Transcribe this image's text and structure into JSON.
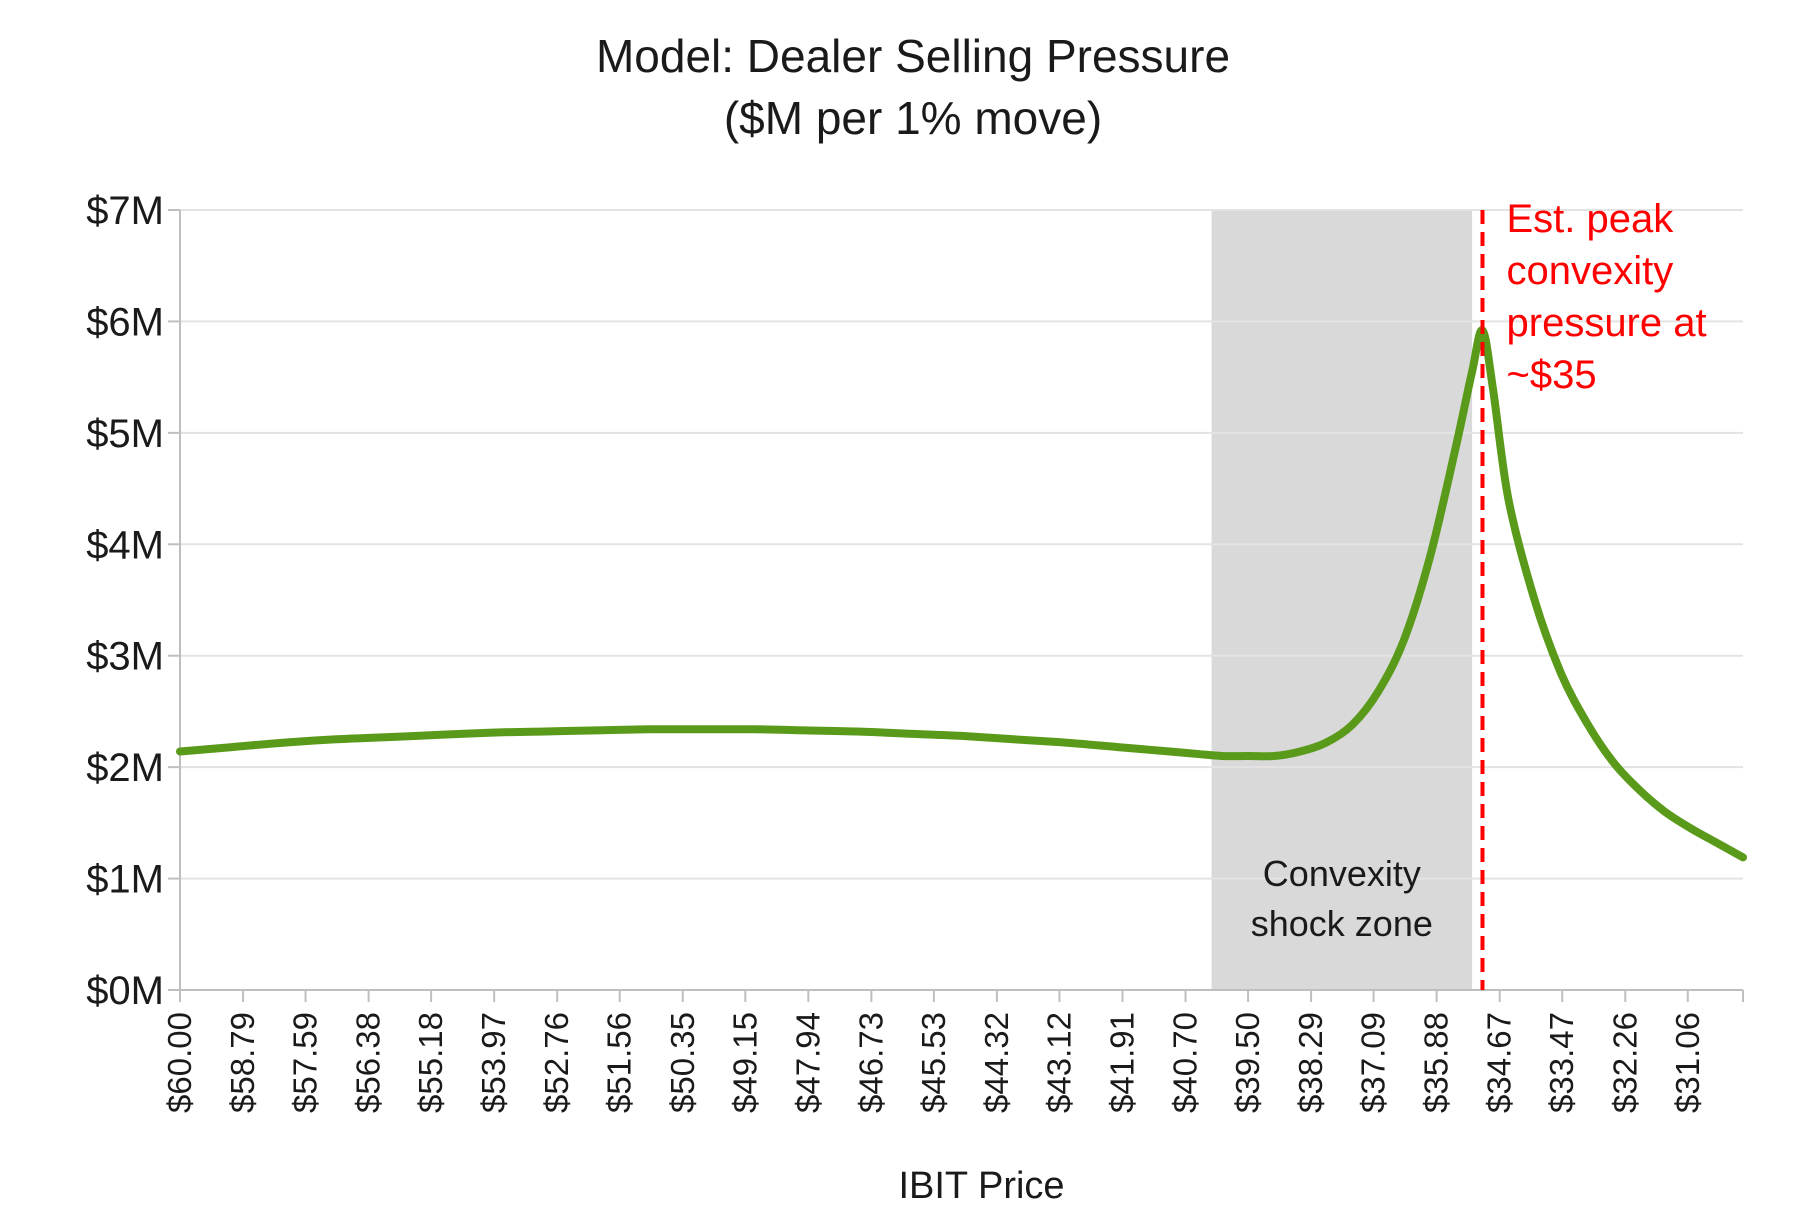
{
  "chart_data": {
    "type": "line",
    "title_lines": [
      "Model: Dealer Selling Pressure",
      "($M per 1% move)"
    ],
    "xlabel": "IBIT Price",
    "ylabel": "",
    "x_range": [
      60.0,
      30.0
    ],
    "ylim": [
      0,
      7
    ],
    "y_ticks": [
      0,
      1,
      2,
      3,
      4,
      5,
      6,
      7
    ],
    "y_tick_labels": [
      "$0M",
      "$1M",
      "$2M",
      "$3M",
      "$4M",
      "$5M",
      "$6M",
      "$7M"
    ],
    "x_ticks": [
      60.0,
      58.79,
      57.59,
      56.38,
      55.18,
      53.97,
      52.76,
      51.56,
      50.35,
      49.15,
      47.94,
      46.73,
      45.53,
      44.32,
      43.12,
      41.91,
      40.7,
      39.5,
      38.29,
      37.09,
      35.88,
      34.67,
      33.47,
      32.26,
      31.06
    ],
    "x_tick_labels": [
      "$60.00",
      "$58.79",
      "$57.59",
      "$56.38",
      "$55.18",
      "$53.97",
      "$52.76",
      "$51.56",
      "$50.35",
      "$49.15",
      "$47.94",
      "$46.73",
      "$45.53",
      "$44.32",
      "$43.12",
      "$41.91",
      "$40.70",
      "$39.50",
      "$38.29",
      "$37.09",
      "$35.88",
      "$34.67",
      "$33.47",
      "$32.26",
      "$31.06"
    ],
    "grid": true,
    "series": [
      {
        "color": "#5a9a1a",
        "x": [
          60.0,
          59.0,
          58.0,
          57.0,
          56.0,
          55.0,
          54.0,
          53.0,
          52.0,
          51.0,
          50.0,
          49.0,
          48.0,
          47.0,
          46.0,
          45.0,
          44.0,
          43.0,
          42.0,
          41.0,
          40.5,
          40.0,
          39.5,
          39.0,
          38.5,
          38.0,
          37.5,
          37.0,
          36.5,
          36.0,
          35.5,
          35.2,
          35.0,
          34.8,
          34.5,
          34.0,
          33.5,
          33.0,
          32.5,
          32.0,
          31.5,
          31.0,
          30.5,
          30.0
        ],
        "values": [
          2.14,
          2.18,
          2.22,
          2.25,
          2.27,
          2.29,
          2.31,
          2.32,
          2.33,
          2.34,
          2.34,
          2.34,
          2.33,
          2.32,
          2.3,
          2.28,
          2.25,
          2.22,
          2.18,
          2.14,
          2.12,
          2.1,
          2.1,
          2.1,
          2.14,
          2.22,
          2.38,
          2.68,
          3.15,
          3.9,
          4.9,
          5.55,
          5.92,
          5.4,
          4.4,
          3.5,
          2.85,
          2.4,
          2.05,
          1.8,
          1.6,
          1.45,
          1.32,
          1.19
        ]
      }
    ],
    "shaded_region": {
      "x_start": 40.2,
      "x_end": 35.2,
      "color": "#d9d9d9",
      "label_lines": [
        "Convexity",
        "shock zone"
      ]
    },
    "reference_line": {
      "x": 35.0,
      "color": "#ff0000",
      "style": "dashed",
      "label_lines": [
        "Est. peak",
        "convexity",
        "pressure at",
        "~$35"
      ]
    }
  }
}
